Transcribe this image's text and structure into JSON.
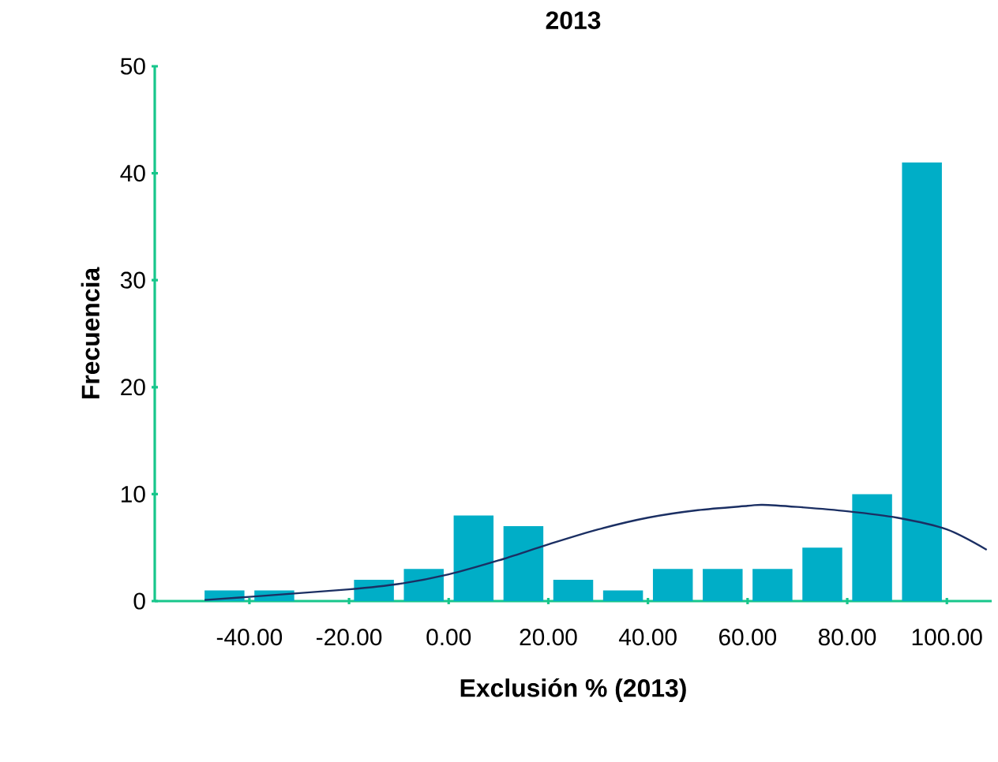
{
  "chart_data": {
    "type": "histogram",
    "title": "2013",
    "xlabel": "Exclusión % (2013)",
    "ylabel": "Frecuencia",
    "xlim": [
      -59,
      109
    ],
    "ylim": [
      0,
      50
    ],
    "xticks": [
      {
        "value": -40,
        "label": "-40.00"
      },
      {
        "value": -20,
        "label": "-20.00"
      },
      {
        "value": 0,
        "label": "0.00"
      },
      {
        "value": 20,
        "label": "20.00"
      },
      {
        "value": 40,
        "label": "40.00"
      },
      {
        "value": 60,
        "label": "60.00"
      },
      {
        "value": 80,
        "label": "80.00"
      },
      {
        "value": 100,
        "label": "100.00"
      }
    ],
    "yticks": [
      0,
      10,
      20,
      30,
      40,
      50
    ],
    "grid": false,
    "series": [
      {
        "color": "#00aec7",
        "bins": [
          -50,
          -40,
          -30,
          -20,
          -10,
          0,
          10,
          20,
          30,
          40,
          50,
          60,
          70,
          80,
          90,
          100
        ],
        "values": [
          1,
          1,
          0,
          2,
          3,
          8,
          7,
          2,
          1,
          3,
          3,
          3,
          5,
          10,
          41
        ]
      },
      {
        "type": "line",
        "color": "#1b2f63",
        "x": [
          -49,
          -40,
          -20,
          -10,
          0,
          10,
          20,
          30,
          40,
          50,
          60,
          63,
          70,
          80,
          90,
          100,
          108
        ],
        "values": [
          0.1,
          0.4,
          1.1,
          1.6,
          2.5,
          3.8,
          5.3,
          6.7,
          7.8,
          8.5,
          8.9,
          9.0,
          8.8,
          8.4,
          7.8,
          6.7,
          4.8
        ]
      }
    ]
  }
}
